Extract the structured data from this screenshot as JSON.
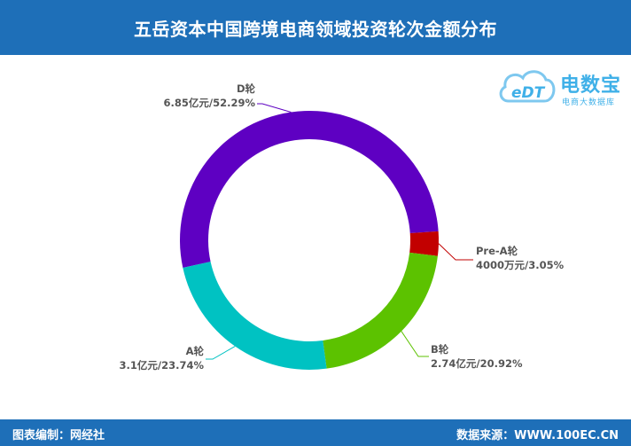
{
  "header": {
    "title": "五岳资本中国跨境电商领域投资轮次金额分布"
  },
  "footer": {
    "left": "图表编制：网经社",
    "right": "数据来源：WWW.100EC.CN"
  },
  "logo": {
    "mark": "eDT",
    "name": "电数宝",
    "sub": "电商大数据库",
    "color": "#3fb0e8"
  },
  "chart_data": {
    "type": "pie",
    "donut": true,
    "slices": [
      {
        "name": "D轮",
        "value_text": "6.85亿元/52.29%",
        "amount_yi": 6.85,
        "percent": 52.29,
        "color": "#5e00c2"
      },
      {
        "name": "Pre-A轮",
        "value_text": "4000万元/3.05%",
        "amount_yi": 0.4,
        "percent": 3.05,
        "color": "#c20000"
      },
      {
        "name": "B轮",
        "value_text": "2.74亿元/20.92%",
        "amount_yi": 2.74,
        "percent": 20.92,
        "color": "#5cc200"
      },
      {
        "name": "A轮",
        "value_text": "3.1亿元/23.74%",
        "amount_yi": 3.1,
        "percent": 23.74,
        "color": "#00c2c2"
      }
    ]
  }
}
